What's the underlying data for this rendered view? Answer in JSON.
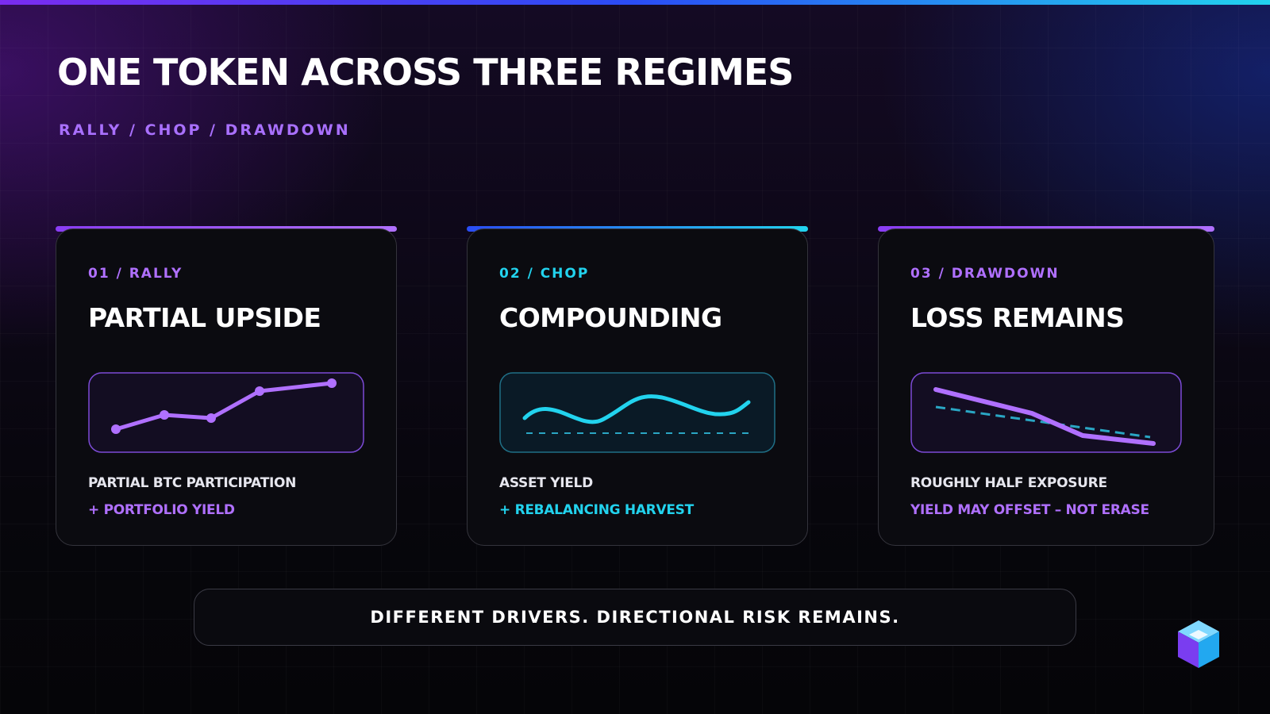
{
  "header": {
    "title": "ONE TOKEN ACROSS THREE REGIMES",
    "subtitle": "RALLY / CHOP / DRAWDOWN"
  },
  "cards": [
    {
      "label": "01 / RALLY",
      "title": "PARTIAL UPSIDE",
      "line1": "PARTIAL BTC PARTICIPATION",
      "line2": "+ PORTFOLIO YIELD"
    },
    {
      "label": "02 / CHOP",
      "title": "COMPOUNDING",
      "line1": "ASSET YIELD",
      "line2": "+ REBALANCING HARVEST"
    },
    {
      "label": "03 / DRAWDOWN",
      "title": "LOSS REMAINS",
      "line1": "ROUGHLY HALF EXPOSURE",
      "line2": "YIELD MAY OFFSET – NOT ERASE"
    }
  ],
  "footer": {
    "note": "DIFFERENT DRIVERS. DIRECTIONAL RISK REMAINS."
  }
}
